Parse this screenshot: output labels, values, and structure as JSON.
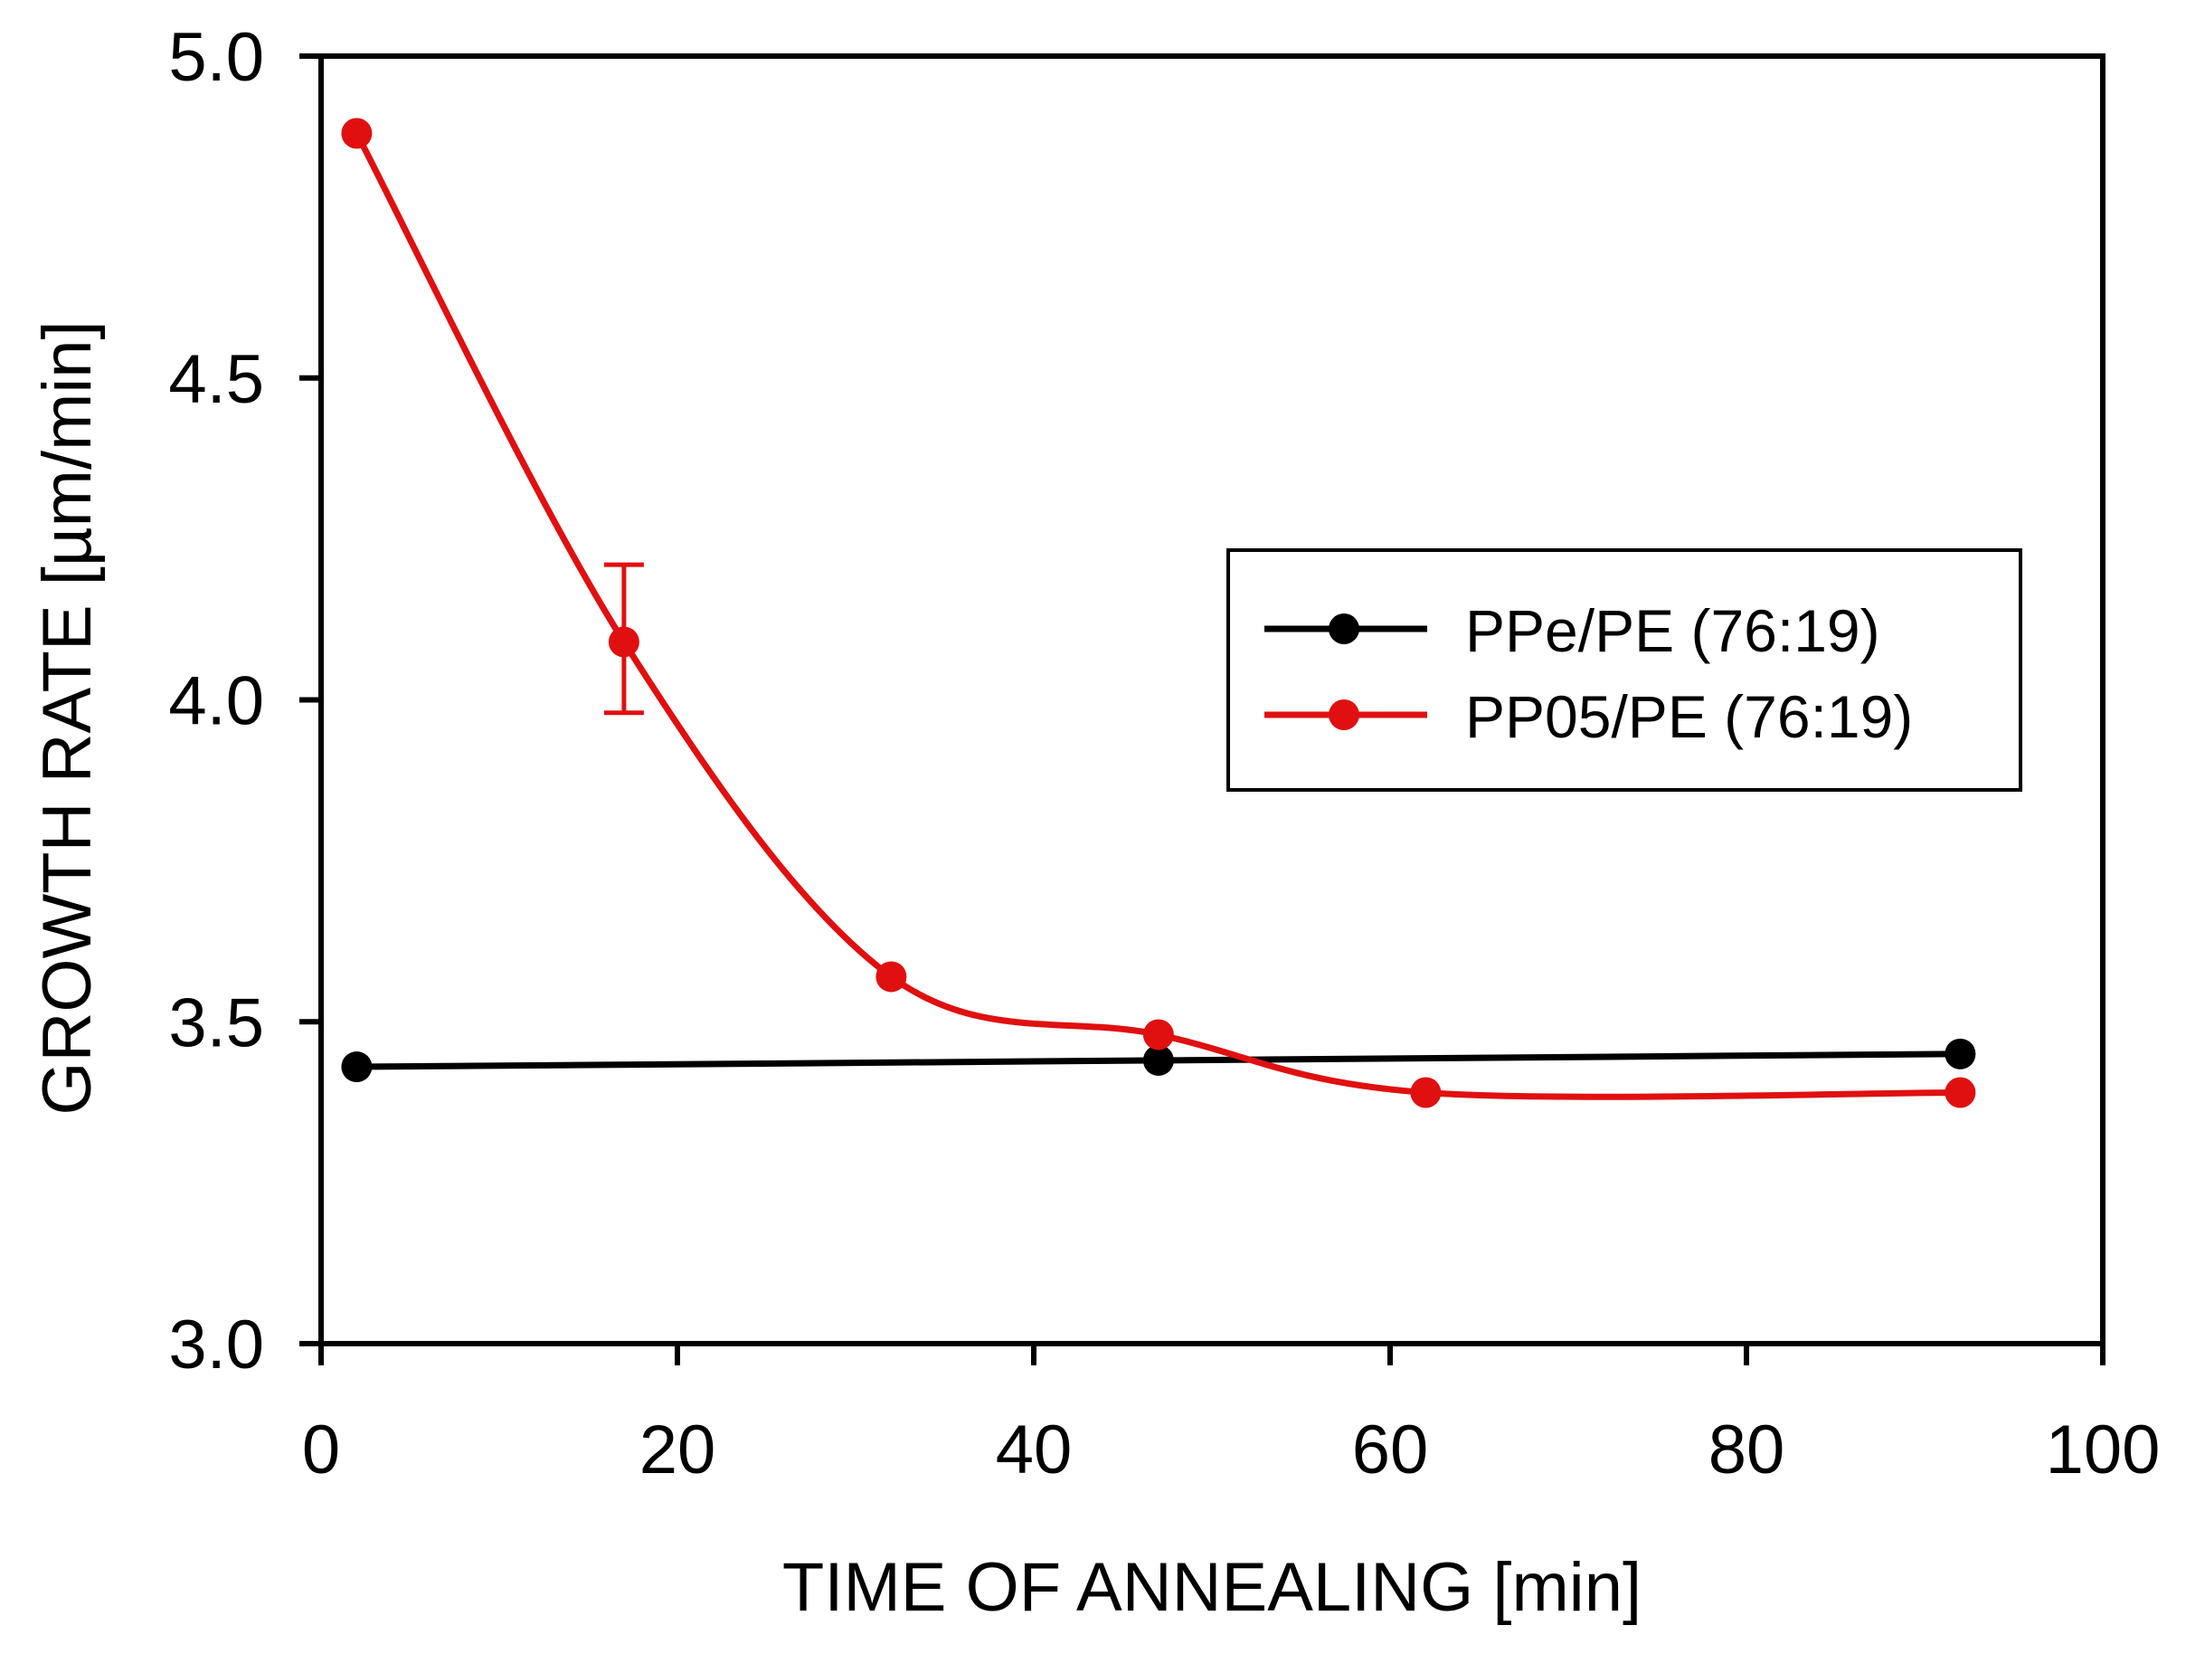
{
  "chart_data": {
    "type": "line",
    "title": "",
    "xlabel": "TIME OF ANNEALING [min]",
    "ylabel": "GROWTH RATE [µm/min]",
    "xlim": [
      0,
      100
    ],
    "ylim": [
      3.0,
      5.0
    ],
    "x_ticks": [
      0,
      20,
      40,
      60,
      80,
      100
    ],
    "x_tick_labels": [
      "0",
      "20",
      "40",
      "60",
      "80",
      "100"
    ],
    "y_ticks": [
      3.0,
      3.5,
      4.0,
      4.5,
      5.0
    ],
    "y_tick_labels": [
      "3.0",
      "3.5",
      "4.0",
      "4.5",
      "5.0"
    ],
    "grid": false,
    "legend_position": "right-center",
    "series": [
      {
        "name": "PPe/PE (76:19)",
        "color": "#000000",
        "x": [
          2,
          47,
          92
        ],
        "y": [
          3.43,
          3.44,
          3.45
        ],
        "line": "straight"
      },
      {
        "name": "PP05/PE (76:19)",
        "color": "#e01010",
        "x": [
          2,
          17,
          32,
          47,
          62,
          92
        ],
        "y": [
          4.88,
          4.09,
          3.57,
          3.48,
          3.39,
          3.39
        ],
        "line": "smooth",
        "error_bars": [
          {
            "x": 17,
            "low": 3.98,
            "high": 4.21
          }
        ]
      }
    ]
  }
}
